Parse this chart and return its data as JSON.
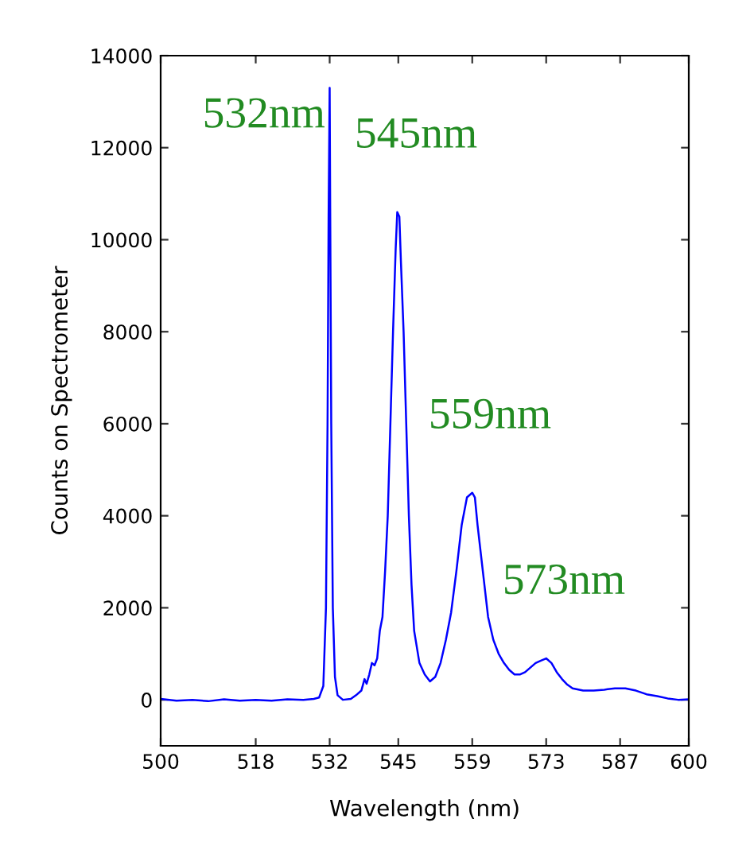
{
  "chart_data": {
    "type": "line",
    "xlabel": "Wavelength (nm)",
    "ylabel": "Counts on Spectrometer",
    "xlim": [
      500,
      600
    ],
    "xticks": [
      500,
      518,
      532,
      545,
      559,
      573,
      587,
      600
    ],
    "ylim": [
      -1000,
      14000
    ],
    "yticks": [
      0,
      2000,
      4000,
      6000,
      8000,
      10000,
      12000,
      14000
    ],
    "grid": false,
    "legend": false,
    "marker": "none",
    "line_style": "solid",
    "annotations": [
      {
        "text": "532nm",
        "x": 532,
        "y": 13300
      },
      {
        "text": "545nm",
        "x": 545,
        "y": 10600
      },
      {
        "text": "559nm",
        "x": 559,
        "y": 4500
      },
      {
        "text": "573nm",
        "x": 573,
        "y": 900
      }
    ],
    "series": [
      {
        "color": "#0000ff",
        "x": [
          500,
          503,
          506,
          509,
          512,
          515,
          518,
          521,
          524,
          527,
          529,
          530,
          530.8,
          531.3,
          531.6,
          531.8,
          532.0,
          532.1,
          532.3,
          532.6,
          533,
          533.5,
          534.5,
          536,
          537,
          538,
          538.6,
          539,
          539.5,
          540,
          540.5,
          541,
          541.5,
          542,
          542.5,
          543,
          543.5,
          544,
          544.5,
          544.8,
          545.2,
          545.5,
          546,
          546.5,
          547,
          547.5,
          548,
          549,
          550,
          551,
          552,
          553,
          554,
          555,
          556,
          557,
          558,
          559,
          559.5,
          560,
          561,
          562,
          563,
          564,
          565,
          566,
          567,
          568,
          569,
          570,
          571,
          572,
          573,
          574,
          575,
          576,
          577,
          578,
          580,
          582,
          584,
          586,
          588,
          590,
          592,
          594,
          596,
          598,
          600
        ],
        "values": [
          20,
          -20,
          0,
          -30,
          10,
          -20,
          0,
          -20,
          10,
          0,
          20,
          50,
          300,
          2000,
          6000,
          10500,
          13300,
          10700,
          6000,
          2000,
          500,
          100,
          0,
          20,
          100,
          200,
          450,
          350,
          550,
          800,
          750,
          900,
          1500,
          1800,
          2800,
          4000,
          6000,
          8000,
          9800,
          10600,
          10500,
          9500,
          8000,
          6000,
          4000,
          2500,
          1500,
          800,
          550,
          400,
          500,
          800,
          1300,
          1900,
          2800,
          3800,
          4400,
          4500,
          4400,
          3800,
          2800,
          1800,
          1300,
          1000,
          800,
          650,
          550,
          550,
          600,
          700,
          800,
          850,
          900,
          800,
          600,
          450,
          330,
          250,
          200,
          200,
          220,
          250,
          250,
          200,
          120,
          80,
          30,
          0,
          10
        ]
      }
    ]
  }
}
